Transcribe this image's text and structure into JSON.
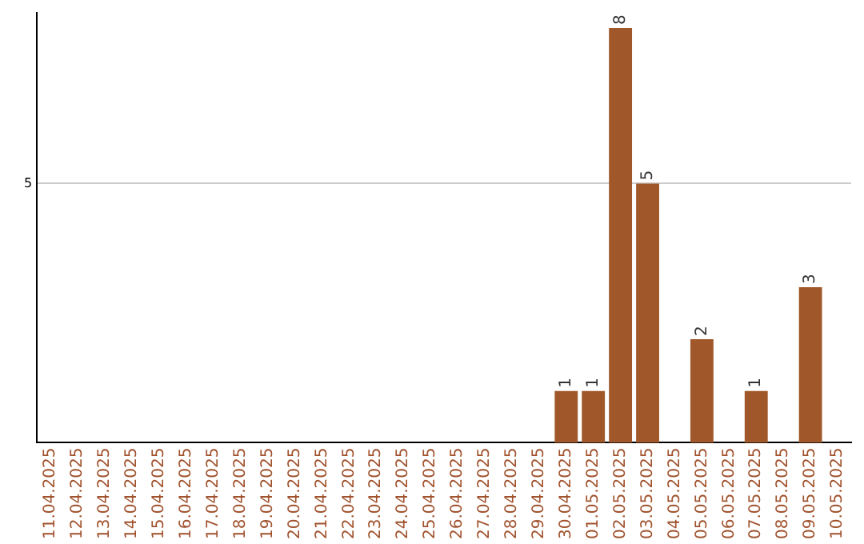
{
  "chart_data": {
    "type": "bar",
    "categories": [
      "11.04.2025",
      "12.04.2025",
      "13.04.2025",
      "14.04.2025",
      "15.04.2025",
      "16.04.2025",
      "17.04.2025",
      "18.04.2025",
      "19.04.2025",
      "20.04.2025",
      "21.04.2025",
      "22.04.2025",
      "23.04.2025",
      "24.04.2025",
      "25.04.2025",
      "26.04.2025",
      "27.04.2025",
      "28.04.2025",
      "29.04.2025",
      "30.04.2025",
      "01.05.2025",
      "02.05.2025",
      "03.05.2025",
      "04.05.2025",
      "05.05.2025",
      "06.05.2025",
      "07.05.2025",
      "08.05.2025",
      "09.05.2025",
      "10.05.2025"
    ],
    "values": [
      null,
      null,
      null,
      null,
      null,
      null,
      null,
      null,
      null,
      null,
      null,
      null,
      null,
      null,
      null,
      null,
      null,
      null,
      null,
      1,
      1,
      8,
      5,
      null,
      2,
      null,
      1,
      null,
      3,
      null
    ],
    "data_labels": true,
    "color": "#a0582a",
    "ylim": [
      0,
      8.3
    ],
    "yticks": [
      5
    ],
    "grid": "y",
    "legend": false
  }
}
